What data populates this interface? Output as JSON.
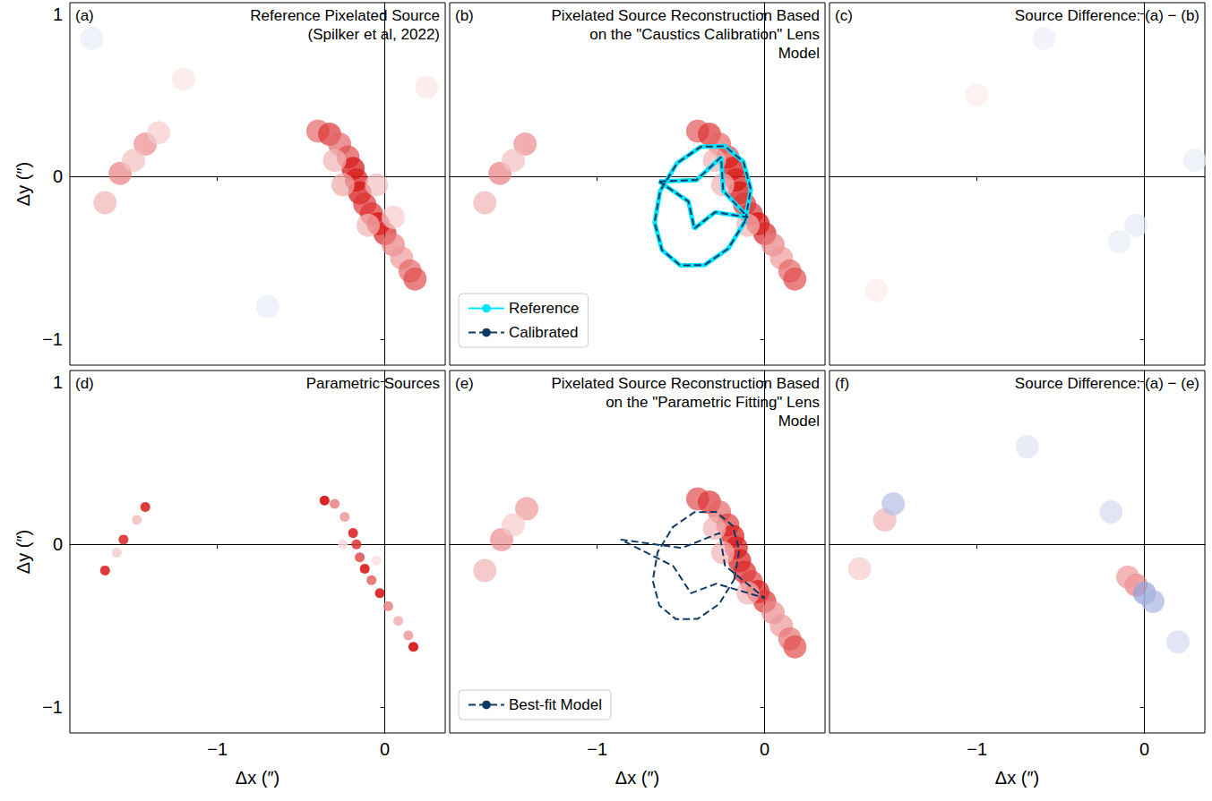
{
  "chart_data": [
    {
      "type": "scatter",
      "panel": "(a)",
      "title": "Reference Pixelated Source (Spilker et al, 2022)",
      "xlim": [
        -1.88,
        0.36
      ],
      "ylim": [
        -1.16,
        1.07
      ],
      "xticks": [
        {
          "value": -1,
          "label": "−1"
        },
        0
      ],
      "yticks": [
        {
          "value": -1,
          "label": "−1"
        },
        0,
        1
      ],
      "tick_labels": "y",
      "ylabel": "Δy (″)",
      "marker": "blob",
      "color_range": [
        -1,
        1
      ],
      "points": [
        [
          -0.4,
          0.28,
          0.6
        ],
        [
          -0.33,
          0.26,
          0.8
        ],
        [
          -0.27,
          0.2,
          0.6
        ],
        [
          -0.22,
          0.12,
          0.7
        ],
        [
          -0.19,
          0.05,
          0.95
        ],
        [
          -0.17,
          -0.02,
          0.9
        ],
        [
          -0.15,
          -0.1,
          0.95
        ],
        [
          -0.12,
          -0.17,
          0.8
        ],
        [
          -0.08,
          -0.23,
          0.8
        ],
        [
          -0.04,
          -0.29,
          0.95
        ],
        [
          0.0,
          -0.35,
          0.85
        ],
        [
          0.05,
          -0.42,
          0.5
        ],
        [
          0.1,
          -0.5,
          0.4
        ],
        [
          0.15,
          -0.58,
          0.6
        ],
        [
          0.18,
          -0.63,
          0.7
        ],
        [
          -0.3,
          0.1,
          0.3
        ],
        [
          -0.25,
          -0.05,
          0.35
        ],
        [
          -0.1,
          -0.3,
          0.3
        ],
        [
          -0.05,
          -0.05,
          0.25
        ],
        [
          0.05,
          -0.25,
          0.2
        ],
        [
          -1.43,
          0.2,
          0.45
        ],
        [
          -1.58,
          0.02,
          0.5
        ],
        [
          -1.67,
          -0.16,
          0.3
        ],
        [
          -1.5,
          0.1,
          0.25
        ],
        [
          -1.35,
          0.27,
          0.2
        ],
        [
          -1.2,
          0.6,
          0.1
        ],
        [
          -0.7,
          -0.8,
          -0.1
        ],
        [
          0.25,
          0.55,
          0.1
        ],
        [
          -1.75,
          0.85,
          -0.1
        ]
      ],
      "series": []
    },
    {
      "type": "scatter",
      "panel": "(b)",
      "title": "Pixelated Source Reconstruction Based on the \"Caustics Calibration\" Lens Model",
      "xlim": [
        -1.88,
        0.36
      ],
      "ylim": [
        -1.16,
        1.07
      ],
      "xticks": [
        {
          "value": -1,
          "label": "−1"
        },
        0
      ],
      "yticks": [
        {
          "value": -1,
          "label": "−1"
        },
        0,
        1
      ],
      "tick_labels": false,
      "marker": "blob",
      "color_range": [
        -1,
        1
      ],
      "legend": "lower left",
      "points": [
        [
          -0.4,
          0.28,
          0.65
        ],
        [
          -0.33,
          0.26,
          0.8
        ],
        [
          -0.27,
          0.2,
          0.6
        ],
        [
          -0.22,
          0.12,
          0.7
        ],
        [
          -0.19,
          0.05,
          0.95
        ],
        [
          -0.17,
          -0.02,
          0.9
        ],
        [
          -0.15,
          -0.1,
          0.95
        ],
        [
          -0.12,
          -0.17,
          0.8
        ],
        [
          -0.08,
          -0.23,
          0.8
        ],
        [
          -0.04,
          -0.29,
          0.95
        ],
        [
          0.0,
          -0.35,
          0.85
        ],
        [
          0.05,
          -0.42,
          0.5
        ],
        [
          0.1,
          -0.5,
          0.4
        ],
        [
          0.15,
          -0.58,
          0.6
        ],
        [
          0.18,
          -0.63,
          0.7
        ],
        [
          -0.3,
          0.1,
          0.3
        ],
        [
          -0.25,
          -0.05,
          0.3
        ],
        [
          -0.1,
          -0.3,
          0.3
        ],
        [
          -1.43,
          0.2,
          0.45
        ],
        [
          -1.58,
          0.02,
          0.5
        ],
        [
          -1.67,
          -0.16,
          0.3
        ],
        [
          -1.5,
          0.1,
          0.25
        ]
      ],
      "series": [
        {
          "name": "Reference",
          "color": "#00e5ff",
          "line_style": "solid",
          "x": [
            -0.116,
            -0.083,
            -0.127,
            -0.237,
            -0.381,
            -0.523,
            -0.624,
            -0.657,
            -0.613,
            -0.503,
            -0.359,
            -0.217,
            -0.116,
            null,
            -0.63,
            -0.407,
            -0.26,
            -0.248,
            -0.1,
            -0.296,
            -0.42,
            -0.455,
            -0.63
          ],
          "y": [
            -0.272,
            -0.077,
            0.092,
            0.187,
            0.184,
            0.083,
            -0.088,
            -0.283,
            -0.452,
            -0.547,
            -0.544,
            -0.443,
            -0.272,
            null,
            -0.03,
            -0.021,
            0.12,
            -0.087,
            -0.25,
            -0.219,
            -0.32,
            -0.153,
            -0.03
          ]
        },
        {
          "name": "Calibrated",
          "color": "#0d3b66",
          "line_style": "dashed",
          "x": [
            -0.116,
            -0.083,
            -0.127,
            -0.237,
            -0.381,
            -0.523,
            -0.624,
            -0.657,
            -0.613,
            -0.503,
            -0.359,
            -0.217,
            -0.116,
            null,
            -0.63,
            -0.407,
            -0.26,
            -0.248,
            -0.1,
            -0.296,
            -0.42,
            -0.455,
            -0.63
          ],
          "y": [
            -0.272,
            -0.077,
            0.092,
            0.187,
            0.184,
            0.083,
            -0.088,
            -0.283,
            -0.452,
            -0.547,
            -0.544,
            -0.443,
            -0.272,
            null,
            -0.03,
            -0.021,
            0.12,
            -0.087,
            -0.25,
            -0.219,
            -0.32,
            -0.153,
            -0.03
          ]
        }
      ]
    },
    {
      "type": "scatter",
      "panel": "(c)",
      "title": "Source Difference: (a) − (b)",
      "xlim": [
        -1.88,
        0.36
      ],
      "ylim": [
        -1.16,
        1.07
      ],
      "xticks": [
        {
          "value": -1,
          "label": "−1"
        },
        0
      ],
      "yticks": [
        {
          "value": -1,
          "label": "−1"
        },
        0,
        1
      ],
      "tick_labels": false,
      "marker": "blob",
      "color_range": [
        -1,
        1
      ],
      "points": [
        [
          -0.15,
          -0.4,
          -0.1
        ],
        [
          0.3,
          0.1,
          -0.1
        ],
        [
          -1.0,
          0.5,
          0.08
        ],
        [
          -0.05,
          -0.3,
          -0.12
        ],
        [
          -1.6,
          -0.7,
          0.08
        ],
        [
          -0.6,
          0.85,
          -0.08
        ]
      ],
      "series": []
    },
    {
      "type": "scatter",
      "panel": "(d)",
      "title": "Parametric Sources",
      "xlim": [
        -1.88,
        0.36
      ],
      "ylim": [
        -1.16,
        1.07
      ],
      "xticks": [
        {
          "value": -1,
          "label": "−1"
        },
        0
      ],
      "yticks": [
        {
          "value": -1,
          "label": "−1"
        },
        0,
        1
      ],
      "xlabel": "Δx (″)",
      "ylabel": "Δy (″)",
      "marker": "dot",
      "color_range": [
        -1,
        1
      ],
      "points": [
        [
          -0.36,
          0.27,
          1.0
        ],
        [
          -0.3,
          0.25,
          0.5
        ],
        [
          -0.24,
          0.17,
          0.4
        ],
        [
          -0.19,
          0.07,
          0.9
        ],
        [
          -0.17,
          0.0,
          0.8
        ],
        [
          -0.15,
          -0.08,
          0.7
        ],
        [
          -0.12,
          -0.15,
          0.95
        ],
        [
          -0.08,
          -0.22,
          0.6
        ],
        [
          -0.03,
          -0.3,
          0.95
        ],
        [
          0.02,
          -0.38,
          0.5
        ],
        [
          0.08,
          -0.47,
          0.3
        ],
        [
          0.14,
          -0.56,
          0.4
        ],
        [
          0.17,
          -0.63,
          1.0
        ],
        [
          -0.25,
          0.0,
          0.15
        ],
        [
          -0.05,
          -0.1,
          0.12
        ],
        [
          -1.43,
          0.23,
          0.9
        ],
        [
          -1.48,
          0.15,
          0.25
        ],
        [
          -1.56,
          0.03,
          0.85
        ],
        [
          -1.6,
          -0.05,
          0.2
        ],
        [
          -1.67,
          -0.16,
          0.9
        ]
      ],
      "series": []
    },
    {
      "type": "scatter",
      "panel": "(e)",
      "title": "Pixelated Source Reconstruction Based on the \"Parametric Fitting\" Lens Model",
      "xlim": [
        -1.88,
        0.36
      ],
      "ylim": [
        -1.16,
        1.07
      ],
      "xticks": [
        {
          "value": -1,
          "label": "−1"
        },
        0
      ],
      "yticks": [
        {
          "value": -1,
          "label": "−1"
        },
        0,
        1
      ],
      "tick_labels": "x",
      "xlabel": "Δx (″)",
      "marker": "blob",
      "color_range": [
        -1,
        1
      ],
      "legend": "lower left",
      "points": [
        [
          -0.4,
          0.28,
          0.7
        ],
        [
          -0.33,
          0.26,
          0.8
        ],
        [
          -0.27,
          0.2,
          0.6
        ],
        [
          -0.22,
          0.12,
          0.75
        ],
        [
          -0.19,
          0.05,
          0.9
        ],
        [
          -0.17,
          -0.02,
          0.9
        ],
        [
          -0.15,
          -0.1,
          0.9
        ],
        [
          -0.12,
          -0.17,
          0.85
        ],
        [
          -0.08,
          -0.23,
          0.75
        ],
        [
          -0.04,
          -0.29,
          0.9
        ],
        [
          0.0,
          -0.35,
          0.8
        ],
        [
          0.05,
          -0.42,
          0.45
        ],
        [
          0.1,
          -0.5,
          0.4
        ],
        [
          0.15,
          -0.58,
          0.55
        ],
        [
          0.18,
          -0.63,
          0.7
        ],
        [
          -0.3,
          0.1,
          0.3
        ],
        [
          -0.25,
          -0.05,
          0.3
        ],
        [
          -0.1,
          -0.3,
          0.3
        ],
        [
          -1.42,
          0.22,
          0.4
        ],
        [
          -1.57,
          0.03,
          0.45
        ],
        [
          -1.67,
          -0.16,
          0.3
        ],
        [
          -1.5,
          0.12,
          0.2
        ]
      ],
      "series": [
        {
          "name": "Best-fit Model",
          "color": "#0d3b66",
          "line_style": "dashed",
          "x": [
            -0.181,
            -0.152,
            -0.191,
            -0.29,
            -0.42,
            -0.548,
            -0.639,
            -0.668,
            -0.629,
            -0.53,
            -0.4,
            -0.272,
            -0.181,
            null,
            -0.86,
            -0.495,
            -0.27,
            -0.237,
            0.0,
            -0.288,
            -0.44,
            -0.546,
            -0.86
          ],
          "y": [
            -0.213,
            -0.037,
            0.115,
            0.2,
            0.198,
            0.107,
            -0.047,
            -0.223,
            -0.375,
            -0.46,
            -0.458,
            -0.367,
            -0.213,
            null,
            0.03,
            -0.022,
            0.07,
            -0.13,
            -0.33,
            -0.241,
            -0.3,
            -0.133,
            0.03
          ]
        }
      ]
    },
    {
      "type": "scatter",
      "panel": "(f)",
      "title": "Source Difference: (a) − (e)",
      "xlim": [
        -1.88,
        0.36
      ],
      "ylim": [
        -1.16,
        1.07
      ],
      "xticks": [
        {
          "value": -1,
          "label": "−1"
        },
        0
      ],
      "yticks": [
        {
          "value": -1,
          "label": "−1"
        },
        0,
        1
      ],
      "tick_labels": "x",
      "xlabel": "Δx (″)",
      "marker": "blob",
      "color_range": [
        -1,
        1
      ],
      "points": [
        [
          -0.05,
          -0.25,
          0.5
        ],
        [
          0.0,
          -0.3,
          -0.5
        ],
        [
          -0.1,
          -0.2,
          0.4
        ],
        [
          0.05,
          -0.35,
          -0.4
        ],
        [
          -1.55,
          0.15,
          0.3
        ],
        [
          -1.5,
          0.25,
          -0.35
        ],
        [
          -0.7,
          0.6,
          -0.15
        ],
        [
          0.2,
          -0.6,
          -0.2
        ],
        [
          -0.2,
          0.2,
          -0.2
        ],
        [
          -1.7,
          -0.15,
          0.2
        ]
      ],
      "series": []
    }
  ]
}
